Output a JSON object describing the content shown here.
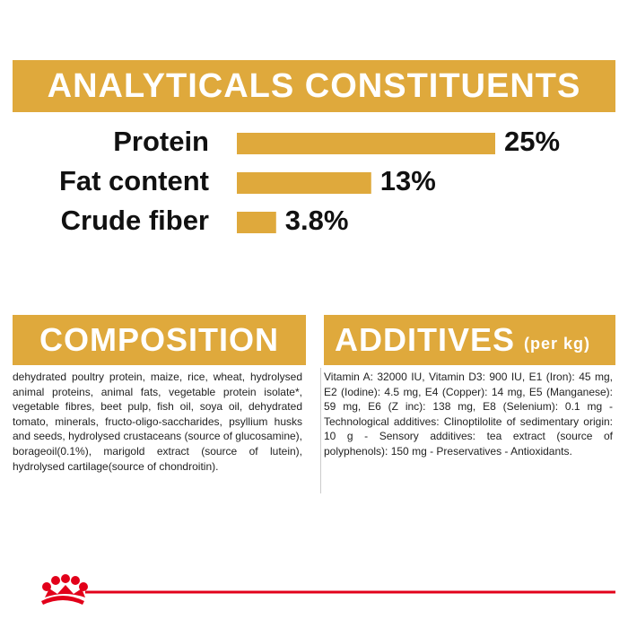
{
  "chart_data": {
    "type": "bar",
    "title": "ANALYTICALS CONSTITUENTS",
    "categories": [
      "Protein",
      "Fat content",
      "Crude fiber"
    ],
    "values": [
      25,
      13,
      3.8
    ],
    "value_labels": [
      "25%",
      "13%",
      "3.8%"
    ],
    "color": "#dfa93c"
  },
  "composition": {
    "title": "COMPOSITION",
    "text": "dehydrated poultry protein, maize, rice, wheat, hydrolysed animal proteins, animal fats, vegetable protein isolate*, vegetable fibres, beet pulp, fish oil, soya oil, dehydrated tomato, minerals, fructo-oligo-saccharides, psyllium husks and seeds, hydrolysed crustaceans (source of glucosamine), borageoil(0.1%), marigold extract (source of lutein), hydrolysed cartilage(source of chondroitin)."
  },
  "additives": {
    "title": "ADDITIVES",
    "subtitle": "(per kg)",
    "text": "Vitamin A: 32000 IU, Vitamin D3: 900 IU, E1 (Iron): 45 mg, E2 (Iodine): 4.5 mg, E4 (Copper): 14 mg, E5 (Manganese): 59 mg, E6 (Z inc): 138 mg, E8 (Selenium): 0.1 mg - Technological additives: Clinoptilolite of sedimentary origin: 10 g - Sensory additives: tea extract (source of polyphenols): 150 mg - Preservatives - Antioxidants."
  }
}
